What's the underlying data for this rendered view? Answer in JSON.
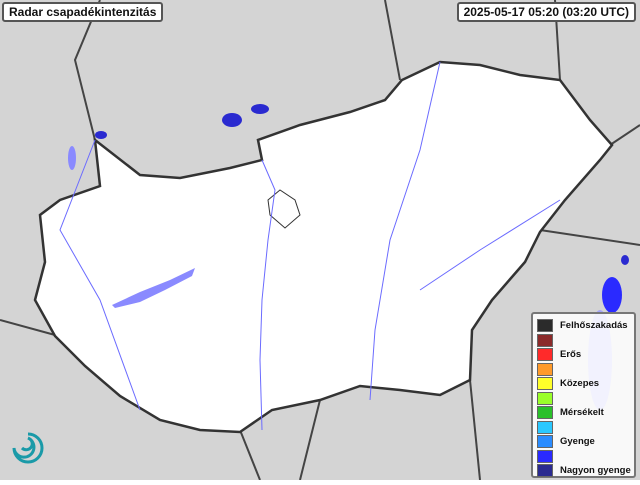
{
  "header": {
    "title": "Radar csapadékintenzitás",
    "timestamp": "2025-05-17 05:20 (03:20 UTC)"
  },
  "legend": [
    {
      "color": "#2b2b2b",
      "label": "Felhőszakadás"
    },
    {
      "color": "#8b2a2a",
      "label": ""
    },
    {
      "color": "#ff2a2a",
      "label": "Erős"
    },
    {
      "color": "#ff9a2a",
      "label": ""
    },
    {
      "color": "#ffff2a",
      "label": "Közepes"
    },
    {
      "color": "#9aff2a",
      "label": ""
    },
    {
      "color": "#2ac02a",
      "label": "Mérsékelt"
    },
    {
      "color": "#2ac8ff",
      "label": ""
    },
    {
      "color": "#2a8cff",
      "label": "Gyenge"
    },
    {
      "color": "#2a2aff",
      "label": ""
    },
    {
      "color": "#2a2a90",
      "label": "Nagyon gyenge"
    }
  ],
  "colors": {
    "country_fill": "#ffffff",
    "surroundings": "#d4d4d4",
    "rivers": "#6b6bff",
    "border": "#333333"
  },
  "icons": {
    "logo": "met-service-swirl-logo"
  }
}
